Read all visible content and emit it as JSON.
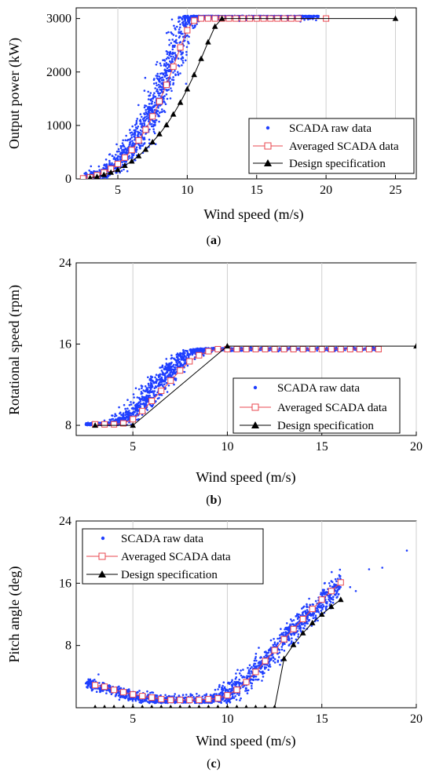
{
  "chart_data": [
    {
      "type": "scatter",
      "panel_label": "(a)",
      "xlabel": "Wind speed (m/s)",
      "ylabel": "Output power (kW)",
      "xlim": [
        2,
        26.5
      ],
      "ylim": [
        0,
        3200
      ],
      "xticks": [
        5,
        10,
        15,
        20,
        25
      ],
      "yticks": [
        0,
        1000,
        2000,
        3000
      ],
      "grid": "vertical",
      "legend_position": "bottom-right",
      "series": [
        {
          "name": "SCADA raw data",
          "kind": "scatter-cloud",
          "color": "#1f3fff",
          "center": {
            "x": [
              2.5,
              3,
              3.5,
              4,
              4.5,
              5,
              5.5,
              6,
              6.5,
              7,
              7.5,
              8,
              8.5,
              9,
              9.5,
              10,
              10.5,
              11,
              12,
              14,
              16,
              18,
              19.5
            ],
            "y": [
              0,
              20,
              60,
              120,
              210,
              310,
              440,
              600,
              790,
              1010,
              1280,
              1570,
              1900,
              2260,
              2650,
              2960,
              3040,
              3040,
              3040,
              3040,
              3040,
              3040,
              3040
            ]
          },
          "x_spread": 0.45,
          "y_spread": 0.06
        },
        {
          "name": "Averaged SCADA data",
          "kind": "line-open-square",
          "color": "#e8474f",
          "x": [
            2.5,
            3,
            3.5,
            4,
            4.5,
            5,
            5.5,
            6,
            6.5,
            7,
            7.5,
            8,
            8.5,
            9,
            9.5,
            10,
            10.5,
            11,
            11.5,
            12,
            12.5,
            13,
            13.5,
            14,
            14.5,
            15,
            15.5,
            16,
            16.5,
            17,
            17.5,
            18,
            20
          ],
          "y": [
            10,
            30,
            70,
            120,
            190,
            280,
            400,
            540,
            720,
            920,
            1170,
            1450,
            1760,
            2100,
            2460,
            2780,
            2960,
            3000,
            3000,
            3000,
            3000,
            3000,
            3000,
            3000,
            3000,
            3000,
            3000,
            3000,
            3000,
            3000,
            3000,
            3000,
            3000
          ]
        },
        {
          "name": "Design specification",
          "kind": "line-filled-triangle",
          "color": "#000000",
          "x": [
            3,
            3.5,
            4,
            4.5,
            5,
            5.5,
            6,
            6.5,
            7,
            7.5,
            8,
            8.5,
            9,
            9.5,
            10,
            10.5,
            11,
            11.5,
            12,
            12.5,
            25
          ],
          "y": [
            20,
            40,
            80,
            120,
            170,
            250,
            330,
            430,
            550,
            690,
            840,
            1010,
            1210,
            1430,
            1680,
            1950,
            2250,
            2560,
            2850,
            3000,
            3000
          ]
        }
      ]
    },
    {
      "type": "scatter",
      "panel_label": "(b)",
      "xlabel": "Wind speed (m/s)",
      "ylabel": "Rotational speed (rpm)",
      "xlim": [
        2,
        20
      ],
      "ylim": [
        7,
        24
      ],
      "xticks": [
        5,
        10,
        15,
        20
      ],
      "yticks": [
        8,
        16,
        24
      ],
      "grid": "vertical",
      "legend_position": "bottom-right",
      "series": [
        {
          "name": "SCADA raw data",
          "kind": "scatter-cloud",
          "color": "#1f3fff",
          "center": {
            "x": [
              2.5,
              3,
              3.5,
              4,
              4.5,
              5,
              5.5,
              6,
              6.5,
              7,
              7.5,
              8,
              8.5,
              9,
              9.5,
              10,
              11,
              13,
              15,
              17,
              18
            ],
            "y": [
              8.1,
              8.1,
              8.1,
              8.2,
              8.6,
              9.3,
              10.3,
              11.4,
              12.5,
              13.5,
              14.4,
              15.1,
              15.4,
              15.5,
              15.5,
              15.5,
              15.5,
              15.5,
              15.5,
              15.5,
              15.5
            ]
          },
          "x_spread": 0.35,
          "y_spread": 0.03
        },
        {
          "name": "Averaged SCADA data",
          "kind": "line-open-square",
          "color": "#e8474f",
          "x": [
            3,
            3.5,
            4,
            4.5,
            5,
            5.5,
            6,
            6.5,
            7,
            7.5,
            8,
            8.5,
            9,
            9.5,
            10,
            10.5,
            11,
            11.5,
            12,
            12.5,
            13,
            13.5,
            14,
            14.5,
            15,
            15.5,
            16,
            16.5,
            17,
            17.5,
            18
          ],
          "y": [
            8.1,
            8.1,
            8.1,
            8.2,
            8.6,
            9.4,
            10.4,
            11.4,
            12.4,
            13.4,
            14.3,
            14.9,
            15.3,
            15.5,
            15.5,
            15.5,
            15.5,
            15.5,
            15.5,
            15.5,
            15.5,
            15.5,
            15.5,
            15.5,
            15.5,
            15.5,
            15.5,
            15.5,
            15.5,
            15.5,
            15.5
          ]
        },
        {
          "name": "Design specification",
          "kind": "line-filled-triangle",
          "color": "#000000",
          "x": [
            3,
            5,
            10,
            20
          ],
          "y": [
            8,
            8,
            15.8,
            15.8
          ]
        }
      ]
    },
    {
      "type": "scatter",
      "panel_label": "(c)",
      "xlabel": "Wind speed (m/s)",
      "ylabel": "Pitch angle (deg)",
      "xlim": [
        2,
        20
      ],
      "ylim": [
        0,
        24
      ],
      "xticks": [
        5,
        10,
        15,
        20
      ],
      "yticks": [
        8,
        16,
        24
      ],
      "grid": "vertical",
      "legend_position": "top-left",
      "series": [
        {
          "name": "SCADA raw data",
          "kind": "scatter-cloud",
          "color": "#1f3fff",
          "center": {
            "x": [
              2.5,
              3,
              3.5,
              4,
              4.5,
              5,
              6,
              7,
              8,
              9,
              9.5,
              10,
              10.5,
              11,
              11.5,
              12,
              12.5,
              13,
              13.5,
              14,
              14.5,
              15,
              15.5,
              16
            ],
            "y": [
              3.0,
              2.9,
              2.6,
              2.2,
              1.8,
              1.5,
              1.1,
              0.9,
              0.9,
              1.0,
              1.2,
              1.7,
              2.5,
              3.5,
              4.8,
              6.0,
              7.3,
              8.7,
              10.0,
              11.3,
              12.5,
              13.6,
              14.8,
              16.0
            ]
          },
          "x_spread": 0.3,
          "y_spread": 1.0,
          "outliers": [
            [
              16.5,
              15.5
            ],
            [
              17.5,
              17.8
            ],
            [
              18.2,
              18.0
            ],
            [
              19.5,
              20.2
            ],
            [
              16.8,
              15.0
            ]
          ]
        },
        {
          "name": "Averaged SCADA data",
          "kind": "line-open-square",
          "color": "#e8474f",
          "x": [
            3,
            3.5,
            4,
            4.5,
            5,
            5.5,
            6,
            6.5,
            7,
            7.5,
            8,
            8.5,
            9,
            9.5,
            10,
            10.5,
            11,
            11.5,
            12,
            12.5,
            13,
            13.5,
            14,
            14.5,
            15,
            15.5,
            16
          ],
          "y": [
            2.9,
            2.7,
            2.3,
            2.0,
            1.7,
            1.5,
            1.3,
            1.1,
            1.0,
            1.0,
            1.0,
            1.0,
            1.1,
            1.2,
            1.6,
            2.3,
            3.3,
            4.6,
            6.0,
            7.4,
            8.8,
            10.1,
            11.4,
            12.7,
            13.9,
            15.0,
            16.1
          ]
        },
        {
          "name": "Design specification",
          "kind": "line-filled-triangle",
          "color": "#000000",
          "x": [
            3,
            3.5,
            4,
            4.5,
            5,
            5.5,
            6,
            6.5,
            7,
            7.5,
            8,
            8.5,
            9,
            9.5,
            10,
            10.5,
            11,
            11.5,
            12,
            12.5,
            13,
            13.5,
            14,
            14.5,
            15,
            15.5,
            16
          ],
          "y": [
            0,
            0,
            0,
            0,
            0,
            0,
            0,
            0,
            0,
            0,
            0,
            0,
            0,
            0,
            0,
            0,
            0,
            0,
            0,
            0,
            6.3,
            8.1,
            9.6,
            10.9,
            12.0,
            13.0,
            13.9
          ]
        }
      ]
    }
  ]
}
